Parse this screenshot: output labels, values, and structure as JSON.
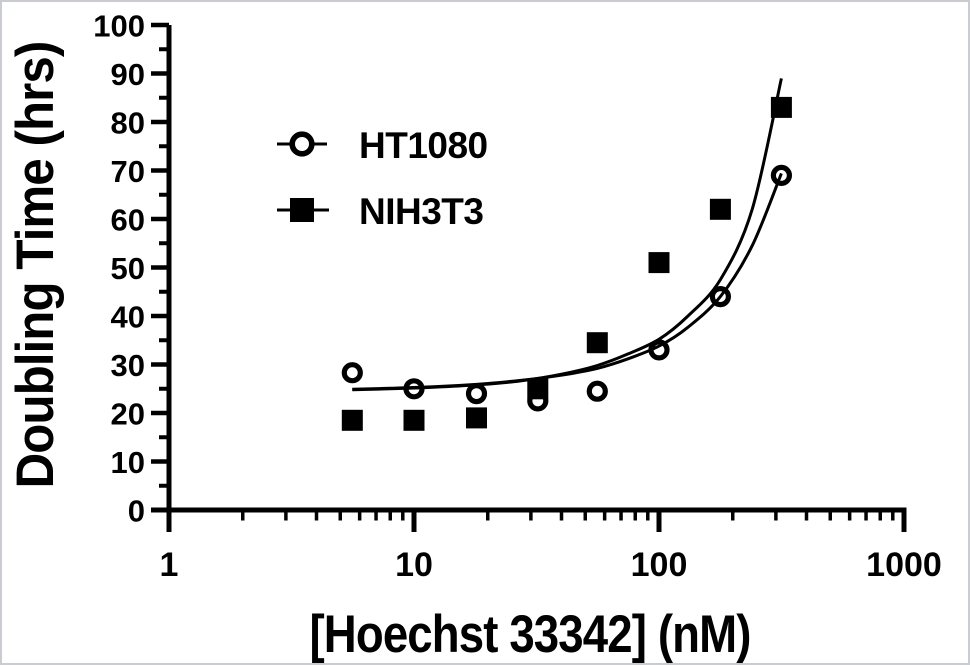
{
  "frame": {
    "background": "#ffffff",
    "border_color": "#c9cdd2",
    "foreground": "#000000"
  },
  "chart_data": {
    "type": "scatter",
    "title": "",
    "xlabel": "[Hoechst 33342] (nM)",
    "ylabel": "Doubling Time (hrs)",
    "x_scale": "log10",
    "xlim": [
      1,
      1000
    ],
    "ylim": [
      0,
      100
    ],
    "grid": false,
    "legend_position": "inside-top-left",
    "x_ticks_major": [
      1,
      10,
      100,
      1000
    ],
    "x_tick_labels": [
      "1",
      "10",
      "100",
      "1000"
    ],
    "x_ticks_minor": [
      2,
      3,
      4,
      5,
      6,
      7,
      8,
      9,
      20,
      30,
      40,
      50,
      60,
      70,
      80,
      90,
      200,
      300,
      400,
      500,
      600,
      700,
      800,
      900
    ],
    "y_ticks_major": [
      0,
      10,
      20,
      30,
      40,
      50,
      60,
      70,
      80,
      90,
      100
    ],
    "y_ticks_minor": [
      5,
      15,
      25,
      35,
      45,
      55,
      65,
      75,
      85,
      95
    ],
    "series": [
      {
        "name": "HT1080",
        "marker": "open-circle",
        "x": [
          5.6,
          10,
          18,
          32,
          56,
          100,
          178,
          316
        ],
        "y": [
          28.3,
          25,
          24,
          22.5,
          24.5,
          33,
          44,
          69
        ]
      },
      {
        "name": "NIH3T3",
        "marker": "filled-square",
        "x": [
          5.6,
          10,
          18,
          32,
          56,
          100,
          178,
          316
        ],
        "y": [
          18.5,
          18.5,
          19,
          25,
          34.5,
          51,
          62,
          83
        ]
      }
    ],
    "fit_curves": [
      {
        "series": "HT1080",
        "x": [
          5.6,
          8,
          12,
          18,
          27,
          40,
          56,
          75,
          100,
          130,
          178,
          240,
          316
        ],
        "y": [
          24.9,
          25.1,
          25.4,
          25.9,
          26.7,
          27.8,
          29.2,
          31.2,
          33.8,
          37.5,
          44.0,
          54.5,
          69.4
        ]
      },
      {
        "series": "NIH3T3",
        "x": [
          5.6,
          8,
          12,
          18,
          27,
          40,
          56,
          75,
          100,
          130,
          178,
          240,
          316
        ],
        "y": [
          24.8,
          25.0,
          25.3,
          25.8,
          26.6,
          28.0,
          29.8,
          32.2,
          35.2,
          39.8,
          47.5,
          62.0,
          89.0
        ]
      }
    ],
    "colors": {
      "series_color": "#000000",
      "background": "#ffffff"
    }
  }
}
